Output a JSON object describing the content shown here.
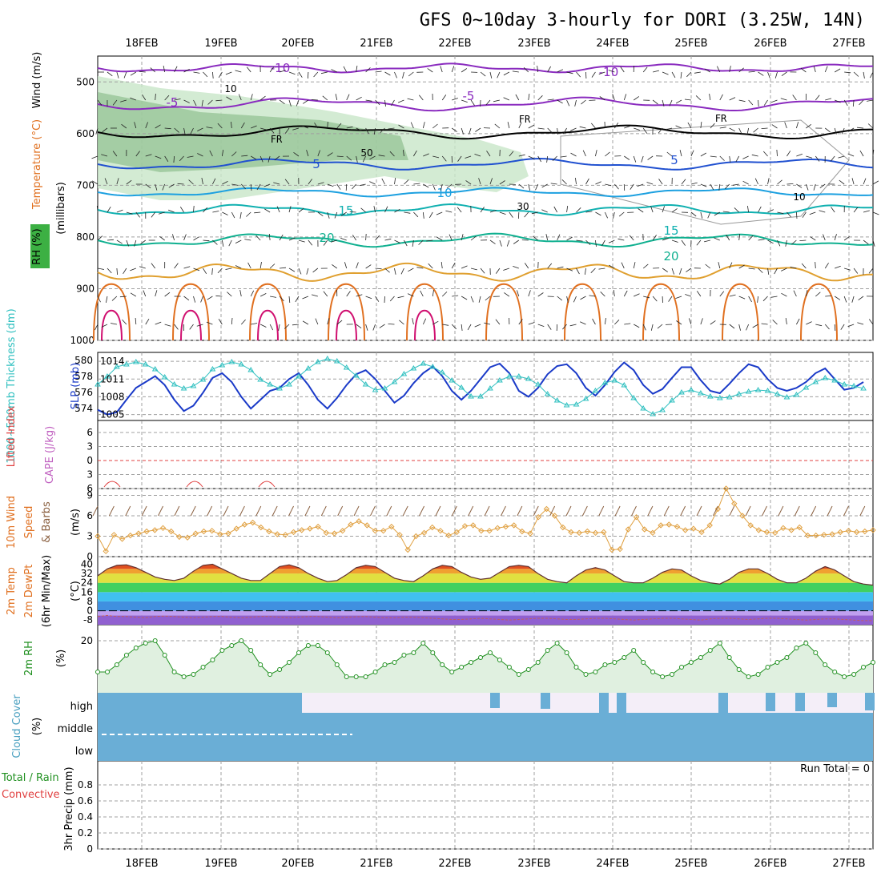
{
  "title": "GFS 0~10day 3-hourly for DORI (3.25W, 14N)",
  "dates": [
    "18FEB",
    "19FEB",
    "20FEB",
    "21FEB",
    "22FEB",
    "23FEB",
    "24FEB",
    "25FEB",
    "26FEB",
    "27FEB"
  ],
  "colors": {
    "grid": "#a0a0a0",
    "rh_fill": "#c8e6c8",
    "rh_dark": "#90c090",
    "temp_neg10": "#8a2bbf",
    "temp_neg5": "#8a2bbf",
    "temp_pos5": "#2050d0",
    "temp_pos10": "#1ca0e0",
    "temp_pos15": "#10b0b0",
    "temp_pos20": "#10b090",
    "orange": "#e0a030",
    "dark_orange": "#e07020",
    "magenta": "#d01070",
    "slp": "#1a3ac8",
    "thickness": "#30c0c0",
    "wind": "#e0a040",
    "rh2m": "#209020",
    "cloud": "#6aaed6",
    "precip_note": "#000000"
  },
  "panels": {
    "upper": {
      "ylabel_lines": [
        "Wind (m/s)",
        "Temperature (°C)",
        "RH (%)"
      ],
      "ylabel_units": "(millibars)",
      "ticks": [
        "500",
        "600",
        "700",
        "800",
        "900",
        "1000"
      ],
      "contour_labels": [
        "-10",
        "-10",
        "-5",
        "-5",
        "FR",
        "FR",
        "FR",
        "5",
        "5",
        "10",
        "15",
        "15",
        "20",
        "20"
      ],
      "rh_labels": [
        "10",
        "50",
        "30",
        "10"
      ]
    },
    "slp": {
      "ylabel_left": "1000~500mb Thickness (dm)",
      "ylabel_right": "SLP (mb)",
      "left_ticks": [
        "580",
        "578",
        "576",
        "574"
      ],
      "right_ticks": [
        "1014",
        "1011",
        "1008",
        "1005"
      ]
    },
    "cape": {
      "ylabel_a": "Lifted Index",
      "ylabel_b": "CAPE (J/kg)",
      "ticks": [
        "6",
        "3",
        "0",
        "3",
        "6"
      ]
    },
    "wind10m": {
      "ylabel_a": "10m Wind",
      "ylabel_b": "Speed",
      "ylabel_c": "& Barbs",
      "units": "(m/s)",
      "ticks": [
        "9",
        "6",
        "3",
        "0"
      ]
    },
    "temp2m": {
      "ylabel_a": "2m Temp",
      "ylabel_b": "2m DewPt",
      "ylabel_c": "(6hr Min/Max)",
      "units": "(°C)",
      "ticks": [
        "40",
        "32",
        "24",
        "16",
        "8",
        "0",
        "-8"
      ]
    },
    "rh2m": {
      "ylabel": "2m RH",
      "units": "(%)",
      "ticks": [
        "20"
      ]
    },
    "cloud": {
      "ylabel": "Cloud Cover",
      "units": "(%)",
      "levels": [
        "high",
        "middle",
        "low"
      ]
    },
    "precip": {
      "ylabel_a": "Total / Rain",
      "ylabel_b": "Convective",
      "ylabel_c": "3hr Precip (mm)",
      "ticks": [
        "0.8",
        "0.6",
        "0.4",
        "0.2",
        "0"
      ],
      "run_total": "Run Total = 0"
    }
  },
  "chart_data": [
    {
      "type": "line",
      "title": "SLP (mb) / 1000~500mb Thickness (dm)",
      "x_unit": "3-hourly steps from 17FEB 12Z",
      "series": [
        {
          "name": "SLP (mb)",
          "values": [
            1005.8,
            1005,
            1005.4,
            1007.5,
            1009.5,
            1010.5,
            1011.5,
            1010,
            1007.5,
            1005.6,
            1006.5,
            1008.7,
            1011.2,
            1012,
            1010.5,
            1008,
            1006,
            1007.5,
            1009,
            1009.5,
            1011,
            1012,
            1010,
            1007.5,
            1006,
            1007.8,
            1010,
            1011.8,
            1012.5,
            1011,
            1009,
            1007,
            1008.2,
            1010.3,
            1012,
            1013.1,
            1011.5,
            1009,
            1007.5,
            1009,
            1011,
            1013,
            1013.6,
            1012,
            1009,
            1008,
            1009.5,
            1011.8,
            1013.2,
            1013.5,
            1012,
            1009.5,
            1008.2,
            1010,
            1012.2,
            1013.8,
            1012.5,
            1010,
            1008.5,
            1009.3,
            1011.2,
            1013,
            1013,
            1010.8,
            1009,
            1008.6,
            1010.2,
            1012,
            1013.5,
            1013,
            1011,
            1009.5,
            1009,
            1009.5,
            1010.5,
            1012,
            1012.8,
            1011,
            1009.2,
            1009.5,
            1010.5
          ]
        },
        {
          "name": "1000~500mb Thickness (dm)",
          "values": [
            577,
            578,
            579.2,
            579.5,
            579.8,
            579.5,
            578.9,
            577.9,
            577,
            576.5,
            576.8,
            577.6,
            578.9,
            579.4,
            579.8,
            579.5,
            578.8,
            577.6,
            577,
            576.5,
            577,
            578,
            579,
            579.8,
            580.2,
            579.9,
            579.1,
            578.1,
            577,
            576.3,
            576.5,
            577.3,
            578.3,
            579,
            579.6,
            579.2,
            578.5,
            577.5,
            576.6,
            575.5,
            575.5,
            576.5,
            577.5,
            578,
            578,
            577.7,
            577,
            575.8,
            575,
            574.4,
            574.5,
            575.2,
            576.2,
            577.2,
            577.5,
            576.9,
            575.3,
            574,
            573.3,
            573.8,
            575,
            576,
            576.3,
            575.9,
            575.5,
            575.3,
            575.4,
            575.8,
            576.1,
            576.3,
            576.2,
            575.8,
            575.4,
            575.7,
            576.6,
            577.3,
            577.8,
            577.5,
            577,
            576.8,
            576.5
          ]
        }
      ]
    },
    {
      "type": "line",
      "title": "10m Wind Speed (m/s)",
      "ylim": [
        0,
        10
      ],
      "series": [
        {
          "name": "10m Wind Speed",
          "values": [
            3,
            0.8,
            3.2,
            2.6,
            3.1,
            3.4,
            3.7,
            3.9,
            4.2,
            3.7,
            2.9,
            2.8,
            3.4,
            3.7,
            3.8,
            3.3,
            3.4,
            4.1,
            4.7,
            5,
            4.3,
            3.7,
            3.3,
            3.2,
            3.6,
            3.9,
            4.1,
            4.4,
            3.5,
            3.4,
            3.8,
            4.7,
            5.2,
            4.6,
            3.8,
            3.8,
            4.4,
            3.2,
            1,
            3,
            3.5,
            4.3,
            3.8,
            3.1,
            3.6,
            4.5,
            4.6,
            3.8,
            3.8,
            4.2,
            4.4,
            4.6,
            3.7,
            3.4,
            5.8,
            7,
            6,
            4.3,
            3.6,
            3.5,
            3.7,
            3.5,
            3.6,
            1,
            1.1,
            4,
            5.8,
            4,
            3.5,
            4.6,
            4.7,
            4.4,
            3.9,
            4.1,
            3.6,
            4.6,
            7,
            10,
            7.8,
            6,
            4.6,
            3.9,
            3.6,
            3.5,
            4.2,
            3.9,
            4.3,
            3.1,
            3.1,
            3.2,
            3.3,
            3.6,
            3.8,
            3.6,
            3.7,
            3.9
          ]
        }
      ]
    },
    {
      "type": "line",
      "title": "2m RH (%)",
      "series": [
        {
          "name": "2m RH",
          "values": [
            7,
            7,
            10,
            14,
            17,
            19,
            20,
            14,
            7,
            5,
            6,
            9,
            12,
            16,
            18,
            20,
            16,
            10,
            6,
            8,
            11,
            15,
            18,
            18,
            15,
            10,
            5,
            5,
            5,
            7,
            10,
            11,
            14,
            15,
            19,
            15,
            10,
            7,
            9,
            11,
            13,
            15,
            12,
            9,
            6,
            8,
            11,
            16,
            19,
            15,
            9,
            6,
            7,
            10,
            11,
            13,
            16,
            11,
            7,
            5,
            6,
            9,
            11,
            13,
            16,
            19,
            13,
            8,
            5,
            6,
            9,
            11,
            13,
            17,
            19,
            15,
            10,
            7,
            5,
            6,
            9,
            11
          ]
        }
      ]
    },
    {
      "type": "area",
      "title": "2m Temp / 2m DewPt (°C)",
      "series": [
        {
          "name": "2m Temp",
          "values": [
            30,
            36,
            39,
            39.5,
            37,
            33,
            29,
            27,
            26,
            28,
            34,
            39,
            40,
            36,
            32,
            28,
            26,
            26,
            32,
            38,
            39.5,
            37,
            32,
            28,
            25,
            26,
            31,
            37,
            39,
            38,
            33,
            28,
            26,
            25,
            30,
            36,
            39,
            38,
            33,
            29,
            27,
            28,
            33,
            38,
            39,
            38,
            32,
            27,
            25,
            24,
            30,
            35,
            37,
            35,
            30,
            25,
            24,
            24,
            28,
            33,
            36,
            35,
            30,
            26,
            24,
            23,
            27,
            33,
            36,
            36,
            32,
            27,
            24,
            24,
            28,
            34,
            38,
            35,
            30,
            25,
            23,
            22
          ]
        },
        {
          "name": "2m DewPt",
          "values": [
            -5,
            -4,
            -5,
            -5,
            -5.5,
            -6,
            -5,
            -4.6,
            -5,
            -5.5,
            -6,
            -5.5,
            -5,
            -5,
            -5.6,
            -6,
            -5.5,
            -5,
            -5,
            -5.5,
            -6,
            -5.5,
            -5,
            -5,
            -5.5,
            -6,
            -5.6,
            -5.2,
            -5,
            -5.5,
            -6,
            -6,
            -5.5,
            -5.5,
            -6,
            -6.5,
            -7,
            -7.5,
            -7.5,
            -7,
            -6.5,
            -7,
            -7.5,
            -8,
            -7.5,
            -7,
            -6.5,
            -6.5,
            -7,
            -7.5,
            -7.5,
            -7,
            -6.5,
            -6.5,
            -7,
            -7.5,
            -8,
            -7.5,
            -7,
            -6.5,
            -6.5,
            -7,
            -7.5,
            -8,
            -7,
            -6.5,
            -6.5,
            -7,
            -7.5,
            -7,
            -6.5,
            -6.5,
            -7,
            -7.5,
            -8,
            -7.5,
            -7,
            -7,
            -7.5,
            -8,
            -8.5,
            -8.5
          ]
        }
      ]
    },
    {
      "type": "bar",
      "title": "3hr Precip (mm)",
      "ylim": [
        0,
        1
      ],
      "series": [
        {
          "name": "3hr Precip",
          "values": [
            0
          ]
        }
      ]
    }
  ]
}
